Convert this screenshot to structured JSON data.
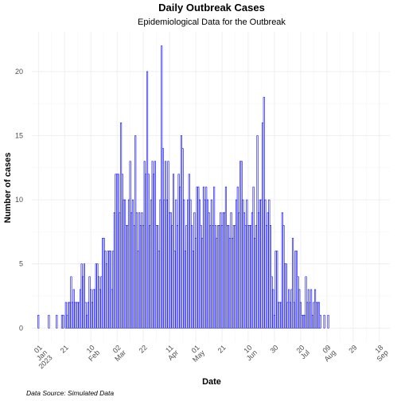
{
  "chart_data": {
    "type": "bar",
    "title": "Daily Outbreak Cases",
    "subtitle": "Epidemiological Data for the Outbreak",
    "xlabel": "Date",
    "ylabel": "Number of cases",
    "caption": "Data Source: Simulated Data",
    "bar_fill": "#ffffff",
    "bar_color": "#0000ff",
    "grid": true,
    "legend": "none",
    "x_start": "2023-01-01",
    "xlim": [
      "2022-12-27",
      "2023-09-26"
    ],
    "ylim": [
      -1.1,
      23.1
    ],
    "y_ticks": [
      0,
      5,
      10,
      15,
      20
    ],
    "x_ticks": [
      {
        "date": "2023-01-01",
        "label": "01\nJan\n2023"
      },
      {
        "date": "2023-01-21",
        "label": "21"
      },
      {
        "date": "2023-02-10",
        "label": "10\nFeb"
      },
      {
        "date": "2023-03-02",
        "label": "02\nMar"
      },
      {
        "date": "2023-03-22",
        "label": "22"
      },
      {
        "date": "2023-04-11",
        "label": "11\nApr"
      },
      {
        "date": "2023-05-01",
        "label": "01\nMay"
      },
      {
        "date": "2023-05-21",
        "label": "21"
      },
      {
        "date": "2023-06-10",
        "label": "10\nJun"
      },
      {
        "date": "2023-06-30",
        "label": "30"
      },
      {
        "date": "2023-07-20",
        "label": "20\nJul"
      },
      {
        "date": "2023-08-09",
        "label": "09\nAug"
      },
      {
        "date": "2023-08-29",
        "label": "29"
      },
      {
        "date": "2023-09-18",
        "label": "18\nSep"
      }
    ],
    "values": [
      1,
      0,
      0,
      0,
      0,
      0,
      0,
      0,
      1,
      0,
      0,
      0,
      0,
      0,
      1,
      0,
      0,
      0,
      1,
      1,
      0,
      2,
      1,
      2,
      2,
      4,
      2,
      3,
      2,
      2,
      2,
      2,
      3,
      5,
      4,
      5,
      2,
      1,
      2,
      4,
      3,
      2,
      3,
      3,
      5,
      5,
      4,
      3,
      4,
      7,
      7,
      6,
      5,
      6,
      6,
      6,
      3,
      6,
      9,
      12,
      12,
      12,
      9,
      16,
      12,
      10,
      10,
      8,
      8,
      10,
      13,
      9,
      10,
      8,
      15,
      9,
      6,
      9,
      8,
      9,
      8,
      13,
      12,
      20,
      12,
      8,
      10,
      13,
      12,
      13,
      8,
      8,
      6,
      10,
      22,
      14,
      10,
      13,
      10,
      13,
      9,
      9,
      8,
      12,
      6,
      10,
      8,
      12,
      11,
      15,
      14,
      10,
      6,
      8,
      10,
      12,
      10,
      8,
      6,
      9,
      7,
      11,
      11,
      10,
      8,
      7,
      11,
      10,
      11,
      10,
      9,
      8,
      10,
      8,
      11,
      8,
      7,
      8,
      8,
      9,
      8,
      9,
      9,
      11,
      8,
      8,
      7,
      9,
      7,
      8,
      8,
      10,
      11,
      9,
      13,
      13,
      10,
      9,
      8,
      10,
      8,
      8,
      8,
      9,
      11,
      7,
      8,
      15,
      9,
      10,
      10,
      16,
      18,
      10,
      8,
      9,
      10,
      8,
      4,
      3,
      1,
      6,
      6,
      2,
      2,
      2,
      9,
      8,
      5,
      5,
      2,
      3,
      2,
      3,
      7,
      2,
      6,
      6,
      4,
      3,
      2,
      1,
      1,
      1,
      4,
      2,
      3,
      2,
      3,
      1,
      2,
      3,
      2,
      2,
      2,
      1,
      0,
      0,
      1,
      0,
      0,
      1
    ]
  }
}
